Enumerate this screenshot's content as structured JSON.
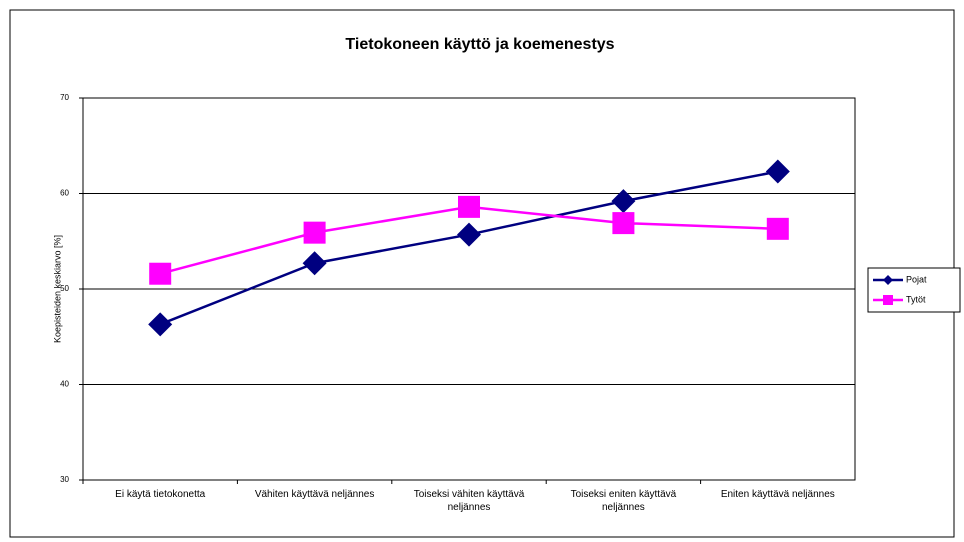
{
  "chart_data": {
    "type": "line",
    "title": "Tietokoneen käyttö ja koemenestys",
    "y_label": "Koepisteiden keskiarvo [%]",
    "categories": [
      "Ei käytä tietokonetta",
      "Vähiten käyttävä neljännes",
      "Toiseksi vähiten käyttävä neljännes",
      "Toiseksi eniten käyttävä neljännes",
      "Eniten käyttävä neljännes"
    ],
    "series": [
      {
        "name": "Pojat",
        "color": "#000080",
        "marker": "diamond",
        "values": [
          46.3,
          52.7,
          55.7,
          59.2,
          62.3
        ]
      },
      {
        "name": "Tytöt",
        "color": "#ff00ff",
        "marker": "square",
        "values": [
          51.6,
          55.9,
          58.6,
          56.9,
          56.3
        ]
      }
    ],
    "ylim": [
      30,
      70
    ],
    "yticks": [
      30,
      40,
      50,
      60,
      70
    ],
    "grid": true,
    "legend": "right"
  }
}
